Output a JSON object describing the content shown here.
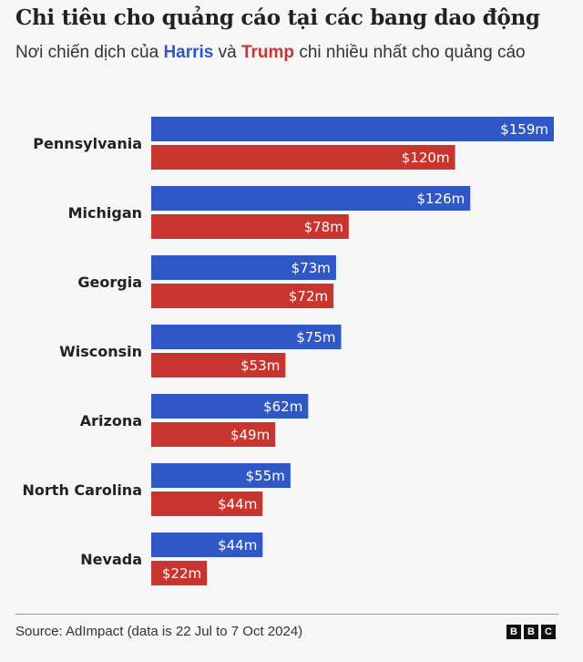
{
  "title": "Chi tiêu cho quảng cáo tại các bang dao động",
  "subtitle": {
    "pre": "Nơi chiến dịch của ",
    "harris": "Harris",
    "mid": " và ",
    "trump": "Trump",
    "post": " chi nhiều nhất cho quảng cáo"
  },
  "source": "Source: AdImpact (data is 22 Jul to 7 Oct 2024)",
  "logo": [
    "B",
    "B",
    "C"
  ],
  "chart_data": {
    "type": "bar",
    "orientation": "horizontal",
    "categories": [
      "Pennsylvania",
      "Michigan",
      "Georgia",
      "Wisconsin",
      "Arizona",
      "North Carolina",
      "Nevada"
    ],
    "series": [
      {
        "name": "Harris",
        "color": "#3057c6",
        "values": [
          159,
          126,
          73,
          75,
          62,
          55,
          44
        ]
      },
      {
        "name": "Trump",
        "color": "#c8352f",
        "values": [
          120,
          78,
          72,
          53,
          49,
          44,
          22
        ]
      }
    ],
    "value_format": "$%dm",
    "grid": false,
    "legend": "in subtitle"
  }
}
